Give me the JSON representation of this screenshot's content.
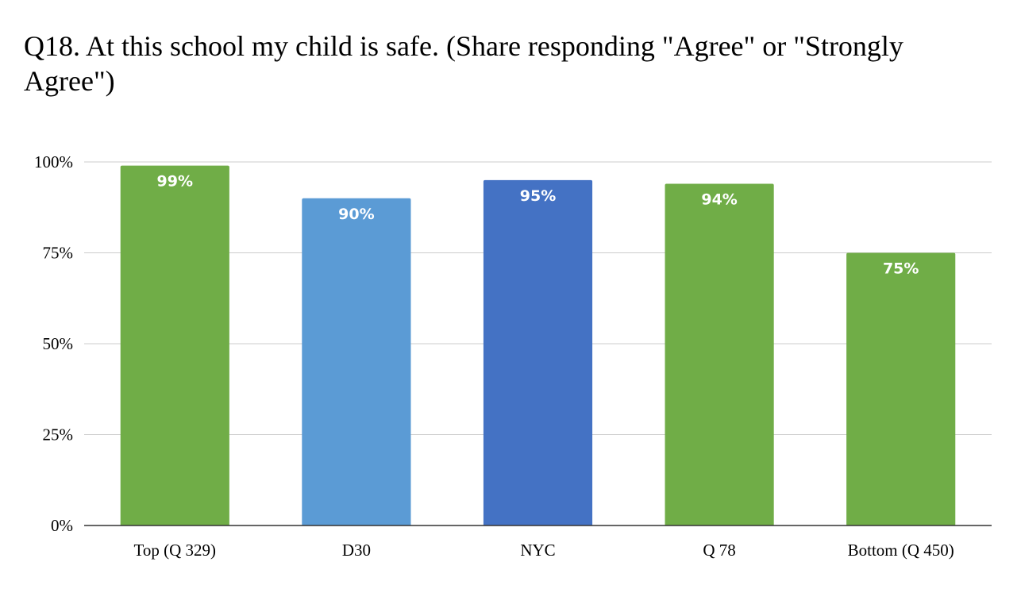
{
  "chart_data": {
    "type": "bar",
    "title": "Q18. At this school my child is safe. (Share responding \"Agree\" or \"Strongly Agree\")",
    "xlabel": "",
    "ylabel": "",
    "categories": [
      "Top (Q 329)",
      "D30",
      "NYC",
      "Q 78",
      "Bottom (Q 450)"
    ],
    "values": [
      99,
      90,
      95,
      94,
      75
    ],
    "data_labels": [
      "99%",
      "90%",
      "95%",
      "94%",
      "75%"
    ],
    "bar_colors": [
      "#70ad47",
      "#5b9bd5",
      "#4472c4",
      "#70ad47",
      "#70ad47"
    ],
    "ylim": [
      0,
      100
    ],
    "yticks": [
      0,
      25,
      50,
      75,
      100
    ],
    "ytick_labels": [
      "0%",
      "25%",
      "50%",
      "75%",
      "100%"
    ],
    "grid": true,
    "legend": "none"
  }
}
